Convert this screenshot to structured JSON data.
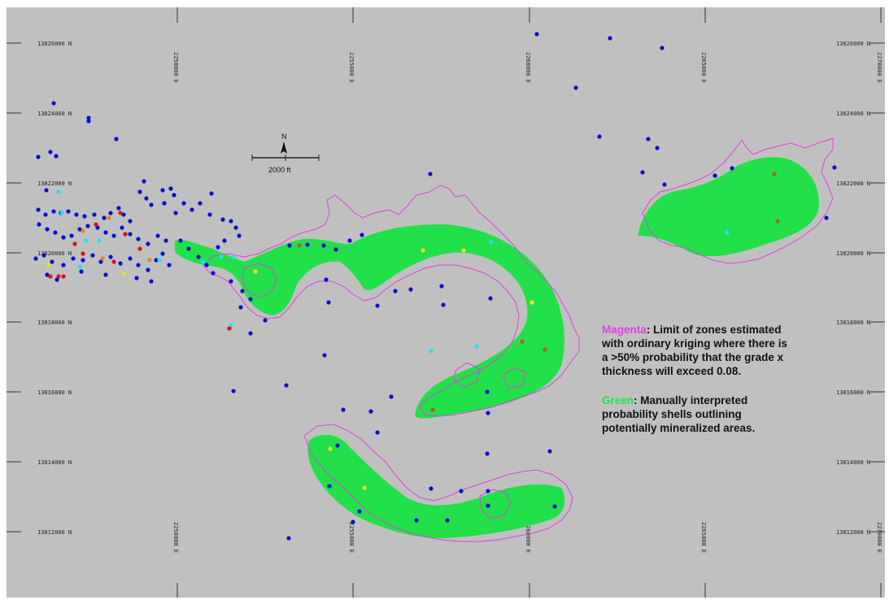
{
  "map": {
    "grid": {
      "northings": [
        "13826000 N",
        "13824000 N",
        "13822000 N",
        "13820000 N",
        "13818000 N",
        "13816000 N",
        "13814000 N",
        "13812000 N"
      ],
      "eastings": [
        "2250000 E",
        "2255000 E",
        "2260000 E",
        "2265000 E",
        "2270000 E"
      ]
    },
    "scale_bar": {
      "label": "2000 ft"
    },
    "legend": {
      "magenta": {
        "color_name": "Magenta",
        "color": "#e040e0",
        "lines": [
          ": Limit of zones estimated",
          "with ordinary kriging where there is",
          "a >50% probability that the grade x",
          "thickness will exceed 0.08."
        ]
      },
      "green": {
        "color_name": "Green",
        "color": "#22e04a",
        "lines": [
          ": Manually interpreted",
          "probability shells outlining",
          "potentially mineralized areas."
        ]
      }
    },
    "colors": {
      "background": "#c0c0c0",
      "shell_fill": "#22e04a",
      "kriging_outline": "#e040e0",
      "hole_blue": "#0010d0",
      "hole_cyan": "#20e0ff",
      "hole_red": "#e01010",
      "hole_yellow": "#f0e020",
      "hole_orange": "#f08020",
      "hole_brown": "#a06030"
    }
  }
}
